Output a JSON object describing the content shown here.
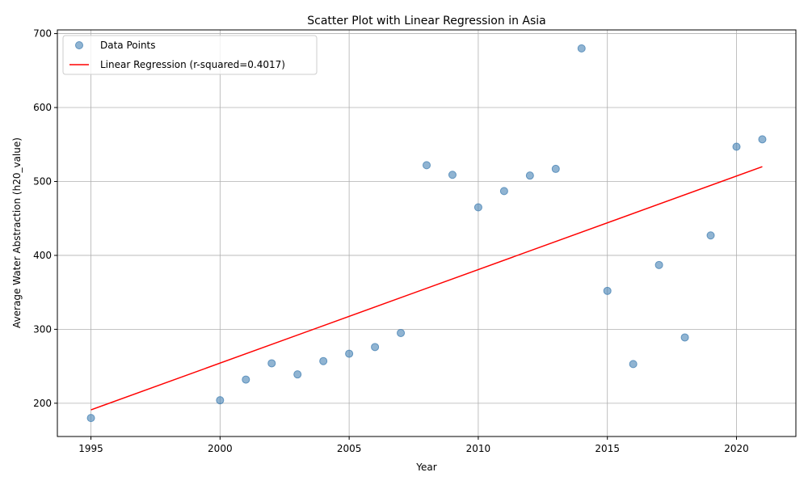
{
  "chart_data": {
    "type": "scatter",
    "title": "Scatter Plot with Linear Regression in Asia",
    "xlabel": "Year",
    "ylabel": "Average Water Abstraction (h20_value)",
    "xlim": [
      1993.7,
      2022.3
    ],
    "ylim": [
      155,
      705
    ],
    "x_ticks": [
      1995,
      2000,
      2005,
      2010,
      2015,
      2020
    ],
    "y_ticks": [
      200,
      300,
      400,
      500,
      600,
      700
    ],
    "grid": true,
    "legend_placement": "top-left",
    "series": [
      {
        "name": "Data Points",
        "kind": "scatter",
        "color": "#4682b4",
        "x": [
          1995,
          2000,
          2001,
          2002,
          2003,
          2004,
          2005,
          2006,
          2007,
          2008,
          2009,
          2010,
          2011,
          2012,
          2013,
          2014,
          2015,
          2016,
          2017,
          2018,
          2019,
          2020,
          2021
        ],
        "y": [
          180,
          204,
          232,
          254,
          239,
          257,
          267,
          276,
          295,
          522,
          509,
          465,
          487,
          508,
          517,
          680,
          352,
          253,
          387,
          289,
          427,
          547,
          557
        ]
      },
      {
        "name": "Linear Regression (r-squared=0.4017)",
        "kind": "line",
        "color": "#ff0000",
        "x": [
          1995,
          2021
        ],
        "y": [
          191,
          520
        ]
      }
    ]
  }
}
